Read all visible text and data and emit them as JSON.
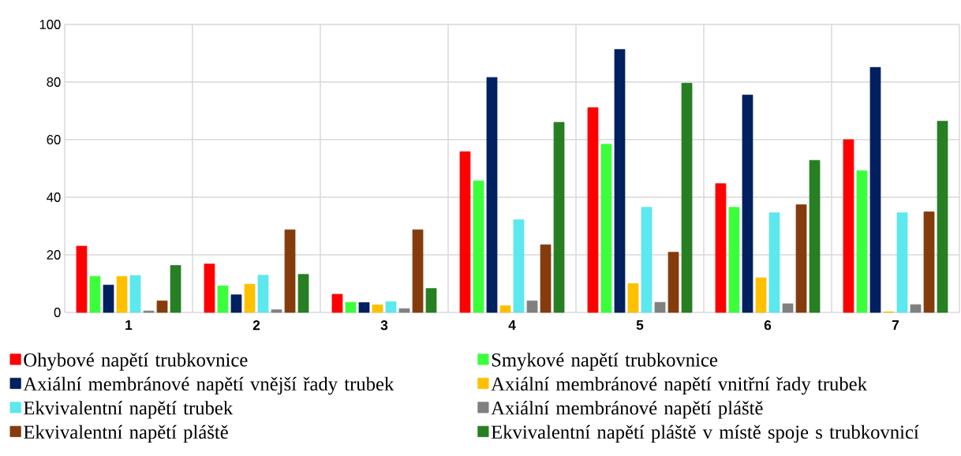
{
  "chart_data": {
    "type": "bar",
    "categories": [
      "1",
      "2",
      "3",
      "4",
      "5",
      "6",
      "7"
    ],
    "series": [
      {
        "name": "Ohybové napětí trubkovnice",
        "color": "#ff0000",
        "values": [
          23,
          16.8,
          6.3,
          55.8,
          71.1,
          44.7,
          60
        ]
      },
      {
        "name": "Smykové napětí trubkovnice",
        "color": "#3bff3b",
        "values": [
          12.5,
          9.2,
          3.5,
          45.7,
          58.4,
          36.5,
          49.2
        ]
      },
      {
        "name": "Axiální membránové napětí vnější řady trubek",
        "color": "#002060",
        "values": [
          9.5,
          6.1,
          3.4,
          81.6,
          91.3,
          75.5,
          85.1
        ]
      },
      {
        "name": "Axiální membránové napětí vnitřní řady trubek",
        "color": "#ffc000",
        "values": [
          12.5,
          9.8,
          2.6,
          2.3,
          10,
          12,
          0.2
        ]
      },
      {
        "name": "Ekvivalentní napětí trubek",
        "color": "#5ce8ec",
        "values": [
          12.8,
          12.9,
          3.7,
          32.2,
          36.5,
          34.6,
          34.6
        ]
      },
      {
        "name": "Axiální membránové napětí pláště",
        "color": "#808080",
        "values": [
          0.5,
          0.9,
          1.3,
          4,
          3.5,
          3,
          2.7
        ]
      },
      {
        "name": "Ekvivalentní napětí pláště",
        "color": "#843c0c",
        "values": [
          4,
          28.7,
          28.7,
          23.5,
          20.9,
          37.4,
          34.9
        ]
      },
      {
        "name": "Ekvivalentní napětí pláště v místě spoje s trubkovnicí",
        "color": "#267f22",
        "values": [
          16.3,
          13.2,
          8.3,
          66,
          79.6,
          52.8,
          66.4
        ]
      }
    ],
    "ylim": [
      0,
      100
    ],
    "yticks": [
      0,
      20,
      40,
      60,
      80,
      100
    ],
    "grid": true,
    "legend": "bottom"
  }
}
